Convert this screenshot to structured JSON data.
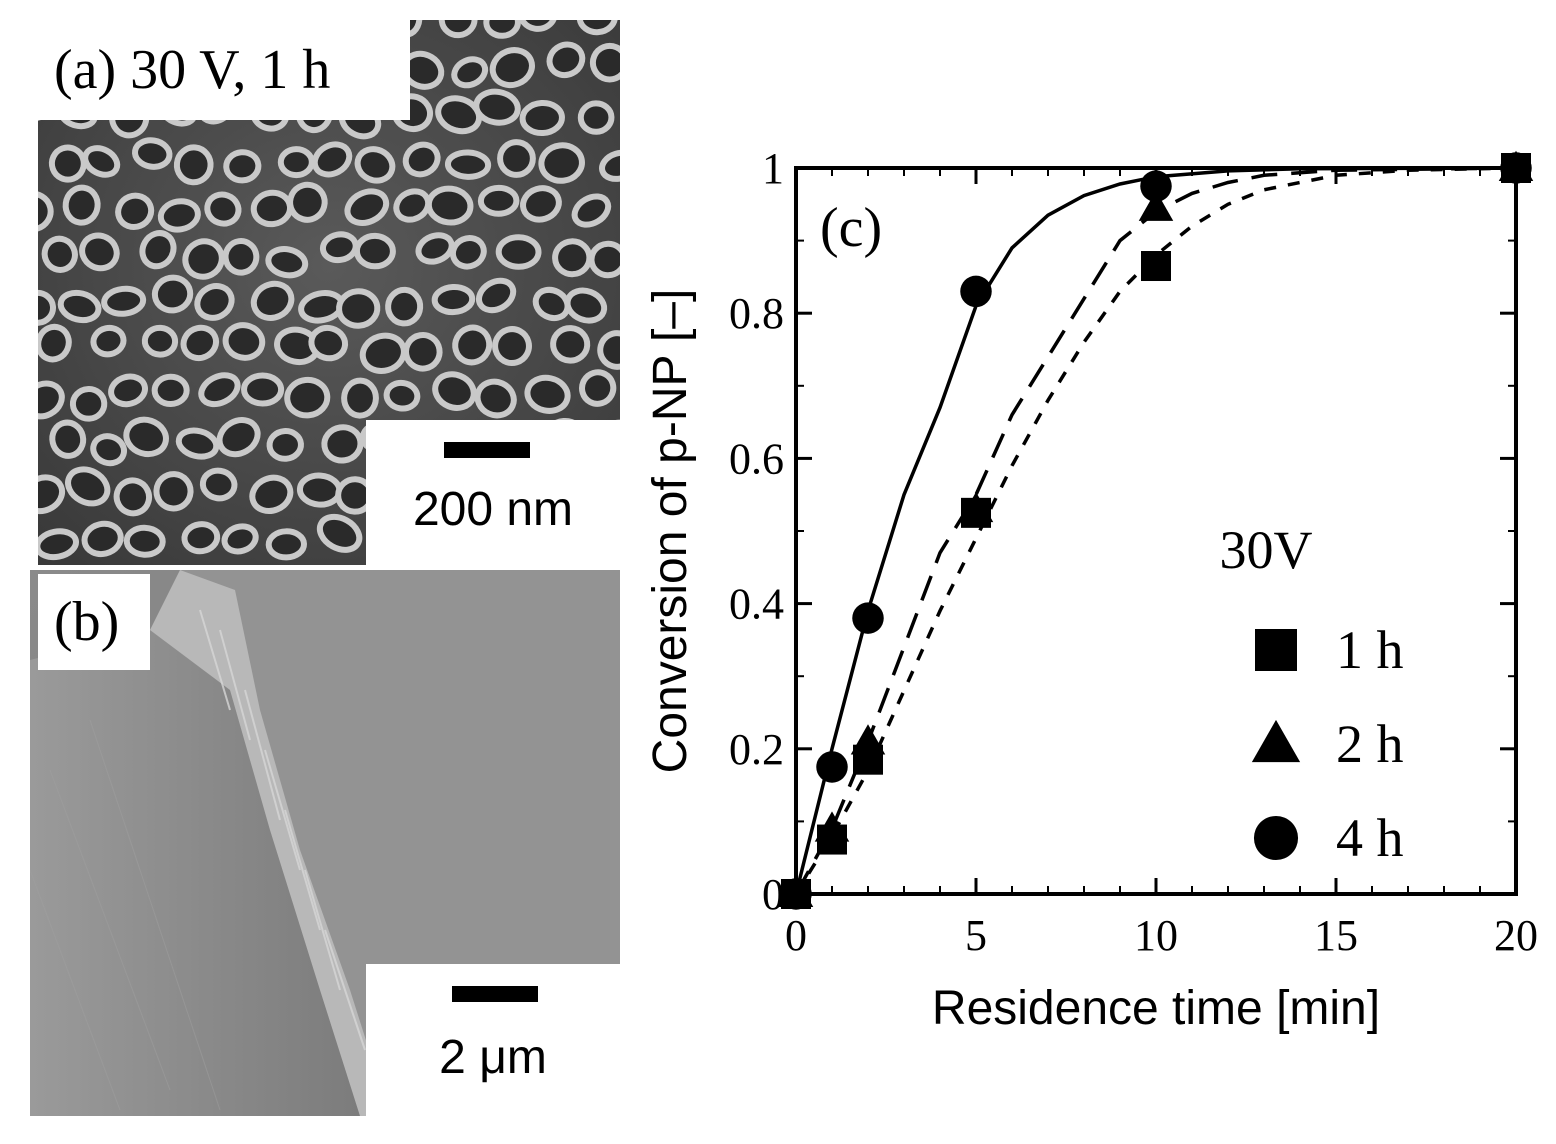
{
  "panel_a": {
    "label": "(a) 30 V, 1 h",
    "scale_label": "200 nm"
  },
  "panel_b": {
    "label": "(b)",
    "scale_label": "2 μm"
  },
  "chart_data": {
    "type": "scatter",
    "panel_label": "(c)",
    "xlabel": "Residence time [min]",
    "ylabel": "Conversion of p-NP [–]",
    "xlim": [
      0,
      20
    ],
    "ylim": [
      0,
      1
    ],
    "x_ticks": [
      0,
      5,
      10,
      15,
      20
    ],
    "x_tick_labels": [
      "0",
      "5",
      "10",
      "15",
      "20"
    ],
    "y_ticks": [
      0,
      0.2,
      0.4,
      0.6,
      0.8,
      1
    ],
    "y_tick_labels": [
      "0",
      "0.2",
      "0.4",
      "0.6",
      "0.8",
      "1"
    ],
    "legend_title": "30V",
    "legend_position": "bottom-right",
    "series": [
      {
        "name": "1 h",
        "marker": "square",
        "line": "short-dash",
        "points": [
          [
            0,
            0
          ],
          [
            1,
            0.075
          ],
          [
            2,
            0.185
          ],
          [
            5,
            0.525
          ],
          [
            10,
            0.865
          ],
          [
            20,
            1.0
          ]
        ],
        "fit": [
          [
            0,
            0
          ],
          [
            1,
            0.08
          ],
          [
            2,
            0.17
          ],
          [
            3,
            0.28
          ],
          [
            4,
            0.39
          ],
          [
            5,
            0.49
          ],
          [
            6,
            0.59
          ],
          [
            7,
            0.68
          ],
          [
            8,
            0.76
          ],
          [
            9,
            0.83
          ],
          [
            10,
            0.88
          ],
          [
            11,
            0.92
          ],
          [
            12,
            0.95
          ],
          [
            13,
            0.97
          ],
          [
            14,
            0.98
          ],
          [
            15,
            0.99
          ],
          [
            17,
            0.997
          ],
          [
            20,
            1.0
          ]
        ]
      },
      {
        "name": "2 h",
        "marker": "triangle",
        "line": "long-dash",
        "points": [
          [
            0,
            0
          ],
          [
            1,
            0.09
          ],
          [
            2,
            0.21
          ],
          [
            5,
            0.53
          ],
          [
            10,
            0.945
          ],
          [
            20,
            1.0
          ]
        ],
        "fit": [
          [
            0,
            0
          ],
          [
            1,
            0.09
          ],
          [
            2,
            0.21
          ],
          [
            3,
            0.34
          ],
          [
            4,
            0.47
          ],
          [
            5,
            0.55
          ],
          [
            6,
            0.66
          ],
          [
            7,
            0.74
          ],
          [
            8,
            0.82
          ],
          [
            9,
            0.9
          ],
          [
            10,
            0.94
          ],
          [
            11,
            0.965
          ],
          [
            12,
            0.98
          ],
          [
            13,
            0.99
          ],
          [
            15,
            0.997
          ],
          [
            20,
            1.0
          ]
        ]
      },
      {
        "name": "4 h",
        "marker": "circle",
        "line": "solid",
        "points": [
          [
            0,
            0
          ],
          [
            1,
            0.175
          ],
          [
            2,
            0.38
          ],
          [
            5,
            0.83
          ],
          [
            10,
            0.975
          ],
          [
            20,
            1.0
          ]
        ],
        "fit": [
          [
            0,
            0
          ],
          [
            1,
            0.2
          ],
          [
            2,
            0.39
          ],
          [
            3,
            0.55
          ],
          [
            4,
            0.67
          ],
          [
            5,
            0.81
          ],
          [
            6,
            0.89
          ],
          [
            7,
            0.935
          ],
          [
            8,
            0.962
          ],
          [
            9,
            0.978
          ],
          [
            10,
            0.988
          ],
          [
            12,
            0.996
          ],
          [
            14,
            0.999
          ],
          [
            20,
            1.0
          ]
        ]
      }
    ]
  }
}
